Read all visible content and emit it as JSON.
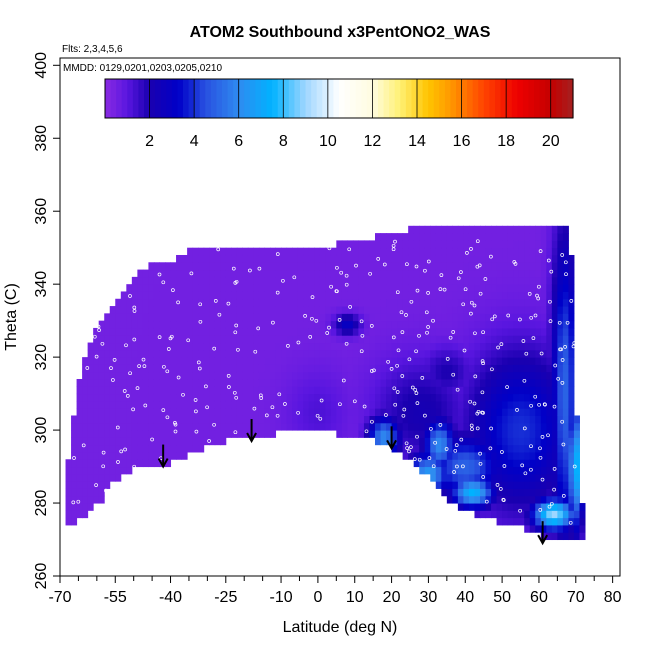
{
  "chart_data": {
    "type": "heatmap",
    "title": "ATOM2 Southbound x3PentONO2_WAS",
    "flights_note": "Flts: 2,3,4,5,6",
    "dates_note": "MMDD: 0129,0201,0203,0205,0210",
    "xlabel": "Latitude (deg N)",
    "ylabel": "Theta (C)",
    "xlim": [
      -70,
      82
    ],
    "ylim": [
      260,
      402
    ],
    "x_ticks": [
      -70,
      -55,
      -40,
      -25,
      -10,
      0,
      10,
      20,
      30,
      40,
      50,
      60,
      70,
      80
    ],
    "x_tick_labels": [
      "-70",
      "-55",
      "-40",
      "-25",
      "-10",
      "0",
      "10",
      "20",
      "30",
      "40",
      "50",
      "60",
      "70",
      "80"
    ],
    "x_minor_ticks": [
      -65,
      -60,
      -50,
      -45,
      -35,
      -30,
      -20,
      -15,
      -5,
      5,
      15,
      25,
      35,
      45,
      55,
      65,
      75
    ],
    "y_ticks": [
      260,
      280,
      300,
      320,
      340,
      360,
      380,
      400
    ],
    "y_tick_labels": [
      "260",
      "280",
      "300",
      "320",
      "340",
      "360",
      "380",
      "400"
    ],
    "colorbar": {
      "min": 0,
      "max": 21,
      "ticks": [
        2,
        4,
        6,
        8,
        10,
        12,
        14,
        16,
        18,
        20
      ],
      "tick_labels": [
        "2",
        "4",
        "6",
        "8",
        "10",
        "12",
        "14",
        "16",
        "18",
        "20"
      ],
      "stops": [
        {
          "v": 0,
          "c": "#8a2be2"
        },
        {
          "v": 1,
          "c": "#5a16e0"
        },
        {
          "v": 2,
          "c": "#1a00b0"
        },
        {
          "v": 3.3,
          "c": "#0000c8"
        },
        {
          "v": 4.5,
          "c": "#2850e0"
        },
        {
          "v": 6,
          "c": "#2f8bf0"
        },
        {
          "v": 7.5,
          "c": "#00b2ff"
        },
        {
          "v": 9,
          "c": "#9fd6ff"
        },
        {
          "v": 10.5,
          "c": "#ffffff"
        },
        {
          "v": 12,
          "c": "#fffce0"
        },
        {
          "v": 13.2,
          "c": "#fff176"
        },
        {
          "v": 14.5,
          "c": "#ffc400"
        },
        {
          "v": 15.5,
          "c": "#ff9800"
        },
        {
          "v": 17,
          "c": "#ff4400"
        },
        {
          "v": 18.5,
          "c": "#ee0000"
        },
        {
          "v": 20,
          "c": "#c40000"
        },
        {
          "v": 21,
          "c": "#a52020"
        }
      ]
    },
    "region_outline": [
      [
        -68,
        274
      ],
      [
        -64,
        276
      ],
      [
        -59,
        280
      ],
      [
        -56,
        286
      ],
      [
        -50,
        289
      ],
      [
        -45,
        290
      ],
      [
        -40,
        291
      ],
      [
        -35,
        293
      ],
      [
        -30,
        296
      ],
      [
        -25,
        297
      ],
      [
        -18,
        298
      ],
      [
        -12,
        299
      ],
      [
        -8,
        300
      ],
      [
        -2,
        299.5
      ],
      [
        5,
        299
      ],
      [
        12,
        298
      ],
      [
        18,
        296
      ],
      [
        22,
        294
      ],
      [
        26,
        291
      ],
      [
        30,
        287
      ],
      [
        34,
        282
      ],
      [
        38,
        279
      ],
      [
        42,
        277
      ],
      [
        48,
        275
      ],
      [
        54,
        273.5
      ],
      [
        58,
        272
      ],
      [
        62,
        270.5
      ],
      [
        66,
        270.5
      ],
      [
        69,
        270.5
      ],
      [
        72,
        270
      ],
      [
        72,
        276
      ],
      [
        71,
        290
      ],
      [
        70,
        310
      ],
      [
        69.5,
        330
      ],
      [
        69,
        345
      ],
      [
        68,
        357
      ],
      [
        60,
        357
      ],
      [
        50,
        357
      ],
      [
        40,
        357
      ],
      [
        30,
        356
      ],
      [
        20,
        354
      ],
      [
        15,
        353
      ],
      [
        5,
        351
      ],
      [
        -5,
        351
      ],
      [
        -15,
        351
      ],
      [
        -22,
        350
      ],
      [
        -28,
        350
      ],
      [
        -35,
        349
      ],
      [
        -40,
        346
      ],
      [
        -45,
        346
      ],
      [
        -50,
        342
      ],
      [
        -55,
        336
      ],
      [
        -59,
        330
      ],
      [
        -62,
        324
      ],
      [
        -65,
        312
      ],
      [
        -67,
        300
      ],
      [
        -68,
        290
      ]
    ],
    "background_value": 0.5,
    "features": [
      {
        "lat": 55,
        "theta": 300,
        "sx": 10,
        "sy": 15,
        "value": 4.0
      },
      {
        "lat": 67,
        "theta": 310,
        "sx": 2.5,
        "sy": 30,
        "value": 5.0
      },
      {
        "lat": 70,
        "theta": 290,
        "sx": 1.5,
        "sy": 12,
        "value": 7.5
      },
      {
        "lat": 64,
        "theta": 277,
        "sx": 4,
        "sy": 3,
        "value": 9.0
      },
      {
        "lat": 40,
        "theta": 290,
        "sx": 7,
        "sy": 6,
        "value": 5.0
      },
      {
        "lat": 42,
        "theta": 283,
        "sx": 4,
        "sy": 3,
        "value": 7.5
      },
      {
        "lat": 33,
        "theta": 296,
        "sx": 3,
        "sy": 5,
        "value": 6.0
      },
      {
        "lat": 30,
        "theta": 288,
        "sx": 4,
        "sy": 4,
        "value": 6.5
      },
      {
        "lat": 18,
        "theta": 298,
        "sx": 3,
        "sy": 4,
        "value": 6.0
      },
      {
        "lat": 8,
        "theta": 329,
        "sx": 2.5,
        "sy": 2,
        "value": 3.0
      },
      {
        "lat": 28,
        "theta": 305,
        "sx": 9,
        "sy": 10,
        "value": 2.2
      },
      {
        "lat": 35,
        "theta": 316,
        "sx": 5,
        "sy": 5,
        "value": 2.0
      },
      {
        "lat": 0,
        "theta": 305,
        "sx": 6,
        "sy": 8,
        "value": 1.2
      }
    ],
    "sample_points_count": 320,
    "flight_arrows": [
      {
        "lat": -42,
        "theta": 290
      },
      {
        "lat": -18,
        "theta": 297
      },
      {
        "lat": 20,
        "theta": 295
      },
      {
        "lat": 61,
        "theta": 269
      }
    ]
  }
}
